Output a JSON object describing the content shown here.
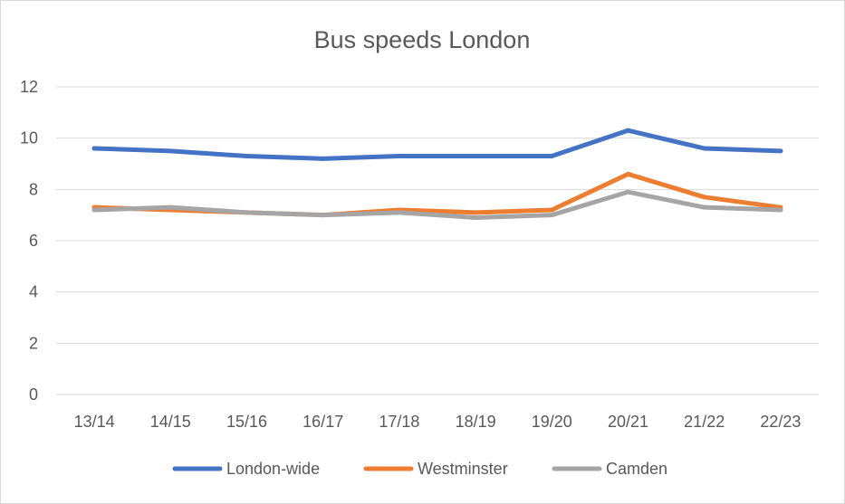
{
  "chart_data": {
    "type": "line",
    "title": "Bus speeds London",
    "xlabel": "",
    "ylabel": "",
    "categories": [
      "13/14",
      "14/15",
      "15/16",
      "16/17",
      "17/18",
      "18/19",
      "19/20",
      "20/21",
      "21/22",
      "22/23"
    ],
    "ylim": [
      0,
      12
    ],
    "yticks": [
      "0",
      "2",
      "4",
      "6",
      "8",
      "10",
      "12"
    ],
    "grid": true,
    "legend": "bottom",
    "series": [
      {
        "name": "London-wide",
        "color": "#4472C4",
        "values": [
          9.6,
          9.5,
          9.3,
          9.2,
          9.3,
          9.3,
          9.3,
          10.3,
          9.6,
          9.5
        ]
      },
      {
        "name": "Westminster",
        "color": "#ED7D31",
        "values": [
          7.3,
          7.2,
          7.1,
          7.0,
          7.2,
          7.1,
          7.2,
          8.6,
          7.7,
          7.3
        ]
      },
      {
        "name": "Camden",
        "color": "#A5A5A5",
        "values": [
          7.2,
          7.3,
          7.1,
          7.0,
          7.1,
          6.9,
          7.0,
          7.9,
          7.3,
          7.2
        ]
      }
    ]
  }
}
